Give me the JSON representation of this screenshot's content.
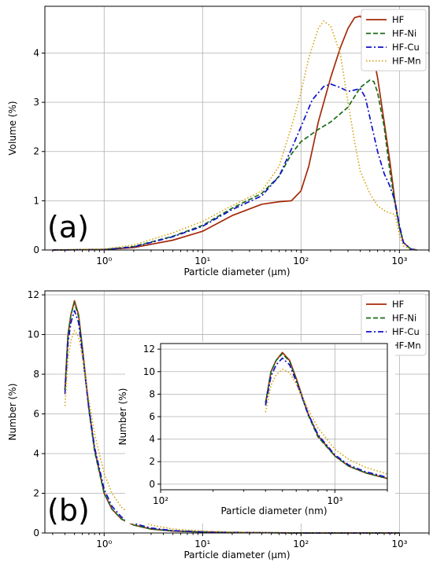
{
  "colors": {
    "HF": "#a52a0a",
    "HF-Ni": "#1a6b1a",
    "HF-Cu": "#1010c8",
    "HF-Mn": "#d4a20a"
  },
  "chart_data": [
    {
      "type": "line",
      "panel_label": "(a)",
      "xlabel": "Particle diameter (μm)",
      "ylabel": "Volume (%)",
      "xscale": "log",
      "xlim": [
        0.25,
        2000
      ],
      "ylim": [
        0,
        4.95
      ],
      "xticks": [
        "10⁰",
        "10¹",
        "10²",
        "10³"
      ],
      "yticks": [
        "0",
        "1",
        "2",
        "3",
        "4"
      ],
      "legend_position": "top-right",
      "grid": true,
      "series": [
        {
          "name": "HF",
          "style": "solid",
          "x": [
            0.3,
            1,
            2,
            5,
            10,
            20,
            40,
            60,
            80,
            100,
            120,
            150,
            200,
            250,
            300,
            350,
            400,
            450,
            500,
            600,
            700,
            800,
            900,
            1000,
            1100,
            1300,
            1500
          ],
          "y": [
            0,
            0.01,
            0.05,
            0.2,
            0.38,
            0.7,
            0.93,
            0.98,
            1.0,
            1.2,
            1.7,
            2.6,
            3.5,
            4.1,
            4.5,
            4.72,
            4.75,
            4.6,
            4.3,
            3.5,
            2.6,
            1.8,
            1.0,
            0.45,
            0.15,
            0.02,
            0
          ]
        },
        {
          "name": "HF-Ni",
          "style": "dashed",
          "x": [
            0.3,
            1,
            2,
            5,
            10,
            20,
            40,
            60,
            80,
            100,
            150,
            200,
            300,
            400,
            500,
            550,
            600,
            700,
            800,
            900,
            1000,
            1100,
            1300,
            1500
          ],
          "y": [
            0,
            0.01,
            0.07,
            0.28,
            0.5,
            0.85,
            1.15,
            1.5,
            1.95,
            2.2,
            2.45,
            2.6,
            2.9,
            3.3,
            3.45,
            3.42,
            3.2,
            2.5,
            1.6,
            0.95,
            0.45,
            0.15,
            0.02,
            0
          ]
        },
        {
          "name": "HF-Cu",
          "style": "dashdot",
          "x": [
            0.3,
            1,
            2,
            5,
            10,
            20,
            40,
            60,
            80,
            100,
            130,
            170,
            200,
            250,
            300,
            350,
            400,
            450,
            500,
            600,
            700,
            800,
            900,
            1000,
            1100,
            1300,
            1500
          ],
          "y": [
            0,
            0.01,
            0.06,
            0.27,
            0.48,
            0.82,
            1.1,
            1.5,
            2.05,
            2.5,
            3.05,
            3.32,
            3.37,
            3.3,
            3.22,
            3.25,
            3.28,
            3.1,
            2.7,
            2.0,
            1.55,
            1.3,
            1.0,
            0.5,
            0.15,
            0.02,
            0
          ]
        },
        {
          "name": "HF-Mn",
          "style": "dotted",
          "x": [
            0.3,
            1,
            2,
            5,
            10,
            20,
            40,
            60,
            80,
            100,
            120,
            150,
            170,
            200,
            250,
            300,
            350,
            400,
            500,
            600,
            700,
            800,
            900,
            1000,
            1100,
            1300,
            1500
          ],
          "y": [
            0,
            0.02,
            0.1,
            0.35,
            0.58,
            0.9,
            1.2,
            1.7,
            2.5,
            3.2,
            3.9,
            4.5,
            4.65,
            4.55,
            4.0,
            3.0,
            2.2,
            1.6,
            1.15,
            0.9,
            0.8,
            0.75,
            0.72,
            0.3,
            0.08,
            0.01,
            0
          ]
        }
      ]
    },
    {
      "type": "line",
      "panel_label": "(b)",
      "xlabel": "Particle diameter (μm)",
      "ylabel": "Number (%)",
      "xscale": "log",
      "xlim": [
        0.25,
        2000
      ],
      "ylim": [
        0,
        12.2
      ],
      "xticks": [
        "10⁰",
        "10¹",
        "10²",
        "10³"
      ],
      "yticks": [
        "0",
        "2",
        "4",
        "6",
        "8",
        "10",
        "12"
      ],
      "legend_position": "top-right",
      "grid": true,
      "series": [
        {
          "name": "HF",
          "style": "solid",
          "x": [
            0.4,
            0.43,
            0.46,
            0.5,
            0.55,
            0.6,
            0.7,
            0.8,
            1.0,
            1.2,
            1.5,
            2,
            3,
            5,
            10,
            20,
            50,
            100,
            1000
          ],
          "y": [
            7.2,
            10.0,
            11.0,
            11.7,
            11.0,
            9.4,
            6.3,
            4.2,
            2.0,
            1.2,
            0.7,
            0.4,
            0.2,
            0.1,
            0.05,
            0.02,
            0.01,
            0,
            0
          ]
        },
        {
          "name": "HF-Ni",
          "style": "dashed",
          "x": [
            0.4,
            0.43,
            0.46,
            0.5,
            0.55,
            0.6,
            0.7,
            0.8,
            1.0,
            1.2,
            1.5,
            2,
            3,
            5,
            10,
            20,
            50,
            100,
            1000
          ],
          "y": [
            7.2,
            10.0,
            11.0,
            11.6,
            10.9,
            9.3,
            6.2,
            4.1,
            2.0,
            1.2,
            0.7,
            0.4,
            0.2,
            0.1,
            0.05,
            0.02,
            0.01,
            0,
            0
          ]
        },
        {
          "name": "HF-Cu",
          "style": "dashdot",
          "x": [
            0.4,
            0.43,
            0.46,
            0.5,
            0.55,
            0.6,
            0.7,
            0.8,
            1.0,
            1.2,
            1.5,
            2,
            3,
            5,
            10,
            20,
            50,
            100,
            1000
          ],
          "y": [
            7.0,
            9.6,
            10.6,
            11.2,
            10.6,
            9.1,
            6.3,
            4.3,
            2.2,
            1.35,
            0.8,
            0.48,
            0.25,
            0.12,
            0.06,
            0.03,
            0.01,
            0,
            0
          ]
        },
        {
          "name": "HF-Mn",
          "style": "dotted",
          "x": [
            0.4,
            0.43,
            0.46,
            0.5,
            0.55,
            0.6,
            0.7,
            0.8,
            1.0,
            1.2,
            1.5,
            2,
            3,
            5,
            10,
            20,
            50,
            100,
            1000
          ],
          "y": [
            6.4,
            8.8,
            9.7,
            10.2,
            9.9,
            8.9,
            6.7,
            5.0,
            3.0,
            2.0,
            1.3,
            0.8,
            0.4,
            0.2,
            0.1,
            0.05,
            0.02,
            0.01,
            0
          ]
        }
      ]
    },
    {
      "type": "line",
      "panel_label": "",
      "inset_of": "(b)",
      "xlabel": "Particle diameter (nm)",
      "ylabel": "Number (%)",
      "xscale": "log",
      "xlim": [
        100,
        2000
      ],
      "ylim": [
        -0.5,
        12.5
      ],
      "xticks": [
        "10²",
        "10³"
      ],
      "yticks": [
        "0",
        "2",
        "4",
        "6",
        "8",
        "10",
        "12"
      ],
      "grid": true,
      "series": [
        {
          "name": "HF",
          "style": "solid",
          "x": [
            400,
            430,
            460,
            500,
            550,
            600,
            700,
            800,
            1000,
            1200,
            1500,
            2000
          ],
          "y": [
            7.2,
            10.0,
            11.0,
            11.7,
            11.0,
            9.4,
            6.3,
            4.3,
            2.5,
            1.6,
            1.0,
            0.5
          ]
        },
        {
          "name": "HF-Ni",
          "style": "dashed",
          "x": [
            400,
            430,
            460,
            500,
            550,
            600,
            700,
            800,
            1000,
            1200,
            1500,
            2000
          ],
          "y": [
            7.2,
            10.0,
            11.0,
            11.6,
            10.9,
            9.3,
            6.2,
            4.2,
            2.5,
            1.6,
            1.0,
            0.5
          ]
        },
        {
          "name": "HF-Cu",
          "style": "dashdot",
          "x": [
            400,
            430,
            460,
            500,
            550,
            600,
            700,
            800,
            1000,
            1200,
            1500,
            2000
          ],
          "y": [
            7.0,
            9.6,
            10.6,
            11.2,
            10.6,
            9.1,
            6.3,
            4.4,
            2.6,
            1.7,
            1.1,
            0.6
          ]
        },
        {
          "name": "HF-Mn",
          "style": "dotted",
          "x": [
            400,
            430,
            460,
            500,
            550,
            600,
            700,
            800,
            1000,
            1200,
            1500,
            2000
          ],
          "y": [
            6.4,
            8.8,
            9.7,
            10.2,
            9.9,
            8.9,
            6.7,
            5.0,
            3.1,
            2.2,
            1.5,
            0.9
          ]
        }
      ]
    }
  ]
}
